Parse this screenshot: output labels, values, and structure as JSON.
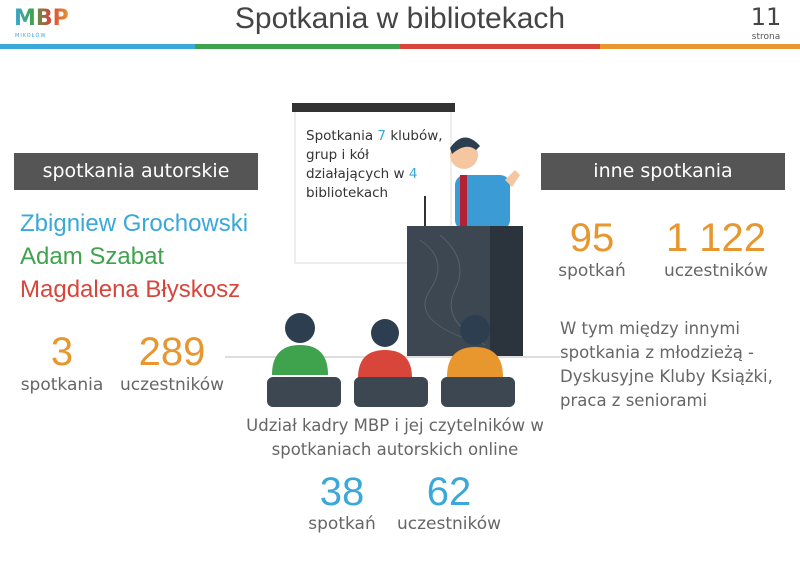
{
  "header": {
    "logo": {
      "text": "MBP",
      "subtitle": "MIKOŁÓW"
    },
    "title": "Spotkania w bibliotekach",
    "page_number": 11,
    "page_label": "strona"
  },
  "board": {
    "text_before": "Spotkania",
    "clubs": 7,
    "text_middle": "klubów, grup i kół działających w",
    "libraries": 4,
    "text_after": "bibliotekach"
  },
  "author_meetings": {
    "heading": "spotkania autorskie",
    "authors": [
      {
        "name": "Zbigniew Grochowski",
        "color": "#3aa8d8"
      },
      {
        "name": "Adam Szabat",
        "color": "#3fa34d"
      },
      {
        "name": "Magdalena Błyskosz",
        "color": "#d8453b"
      }
    ],
    "stats": [
      {
        "value": 3,
        "label": "spotkania"
      },
      {
        "value": 289,
        "label": "uczestników"
      }
    ]
  },
  "other_meetings": {
    "heading": "inne spotkania",
    "stats": [
      {
        "value": 95,
        "label": "spotkań"
      },
      {
        "value": {
          "value": 1122,
          "label": "1 122"
        },
        "label": "uczestników"
      }
    ],
    "note": "W tym między innymi spotkania z młodzieżą - Dyskusyjne Kluby Książki, praca z seniorami"
  },
  "online": {
    "text": "Udział kadry MBP i jej czytelników w spotkaniach autorskich online",
    "stats": [
      {
        "value": 38,
        "label": "spotkań"
      },
      {
        "value": 62,
        "label": "uczestników"
      }
    ]
  }
}
